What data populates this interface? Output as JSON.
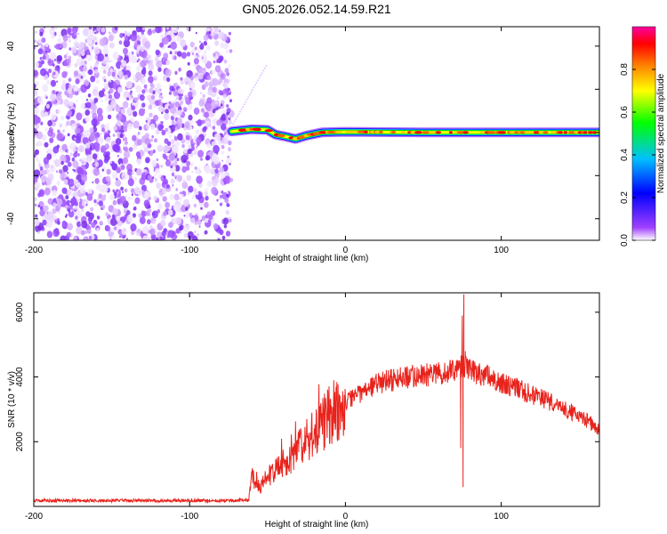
{
  "title": "GN05.2026.052.14.59.R21",
  "chart_data": [
    {
      "type": "heatmap",
      "title": "GN05.2026.052.14.59.R21",
      "xlabel": "Height of straight line (km)",
      "ylabel": "Frequency (Hz)",
      "xlim": [
        -200,
        163
      ],
      "ylim": [
        -50,
        49
      ],
      "xticks": [
        -200,
        -100,
        0,
        100
      ],
      "xtick_labels": [
        "-200",
        "-100",
        "0",
        "100"
      ],
      "yticks": [
        -40,
        -20,
        0,
        20,
        40
      ],
      "ytick_labels": [
        "-40",
        "-20",
        "0",
        "20",
        "40"
      ],
      "noise_region_x": [
        -200,
        -73
      ],
      "signal_start_x": -73,
      "signal_frequency_trace": [
        {
          "x": -73,
          "f": 0.5
        },
        {
          "x": -60,
          "f": 1.5
        },
        {
          "x": -50,
          "f": 1.2
        },
        {
          "x": -45,
          "f": -1.0
        },
        {
          "x": -38,
          "f": -2.0
        },
        {
          "x": -32,
          "f": -3.0
        },
        {
          "x": -25,
          "f": -1.5
        },
        {
          "x": -15,
          "f": 0.0
        },
        {
          "x": 0,
          "f": 0.3
        },
        {
          "x": 50,
          "f": 0.0
        },
        {
          "x": 100,
          "f": 0.0
        },
        {
          "x": 163,
          "f": 0.0
        }
      ],
      "colorbar": {
        "label": "Normalized spectral amplitude",
        "range": [
          0,
          1
        ],
        "ticks": [
          0.0,
          0.2,
          0.4,
          0.6,
          0.8
        ],
        "tick_labels": [
          "0.0",
          "0.2",
          "0.4",
          "0.6",
          "0.8"
        ],
        "colors": [
          "#ffffff",
          "#a040ff",
          "#0000ff",
          "#00c0ff",
          "#00ff00",
          "#ffff00",
          "#ff8000",
          "#ff0000",
          "#ff00a0"
        ]
      }
    },
    {
      "type": "line",
      "xlabel": "Height of straight line (km)",
      "ylabel": "SNR (10 * v/v)",
      "xlim": [
        -200,
        163
      ],
      "ylim": [
        0,
        6600
      ],
      "xticks": [
        -200,
        -100,
        0,
        100
      ],
      "xtick_labels": [
        "-200",
        "-100",
        "0",
        "100"
      ],
      "yticks": [
        2000,
        4000,
        6000
      ],
      "ytick_labels": [
        "2000",
        "4000",
        "6000"
      ],
      "color": "#e8231c",
      "series": [
        {
          "name": "SNR",
          "x": [
            -200,
            -150,
            -100,
            -75,
            -62,
            -60,
            -55,
            -50,
            -45,
            -40,
            -35,
            -30,
            -25,
            -20,
            -15,
            -10,
            -5,
            0,
            10,
            20,
            30,
            40,
            50,
            60,
            70,
            75,
            80,
            90,
            100,
            110,
            120,
            130,
            140,
            150,
            163
          ],
          "y": [
            180,
            180,
            180,
            180,
            200,
            900,
            600,
            900,
            1100,
            1350,
            1550,
            1750,
            2000,
            2200,
            2500,
            2800,
            3000,
            3200,
            3500,
            3800,
            3900,
            4000,
            4050,
            4100,
            4200,
            4300,
            4200,
            4050,
            3850,
            3650,
            3450,
            3250,
            3050,
            2800,
            2400
          ]
        }
      ],
      "spikes": [
        {
          "x": 74,
          "y": 1800
        },
        {
          "x": 75,
          "y": 5900
        },
        {
          "x": 75.5,
          "y": 600
        },
        {
          "x": 76,
          "y": 6550
        },
        {
          "x": 77,
          "y": 4800
        }
      ]
    }
  ]
}
